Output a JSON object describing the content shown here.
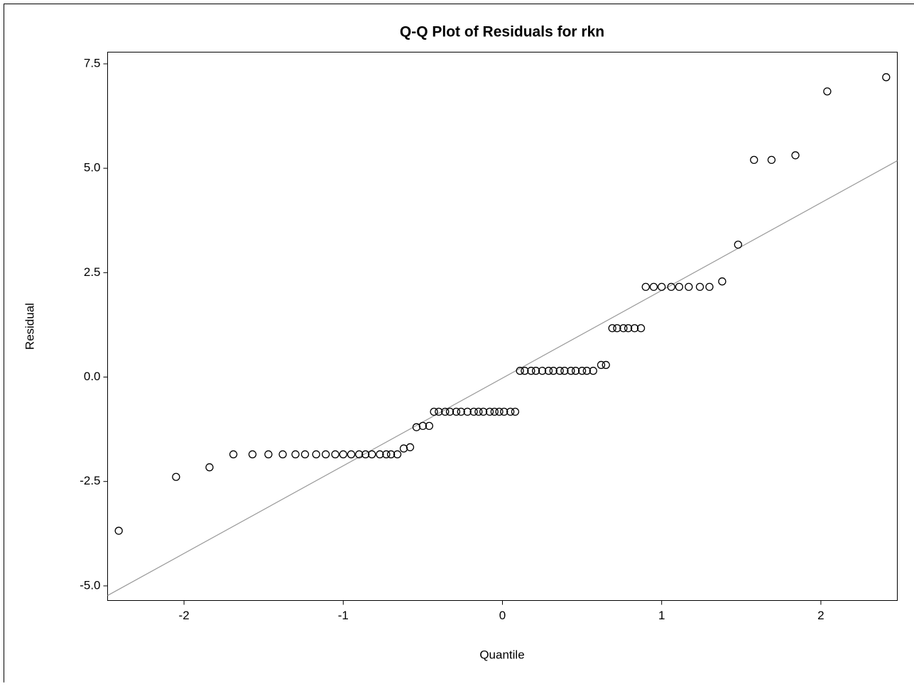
{
  "chart_data": {
    "type": "scatter",
    "title": "Q-Q Plot of Residuals for rkn",
    "x_label": "Quantile",
    "y_label": "Residual",
    "xlim": [
      -2.48,
      2.48
    ],
    "ylim": [
      -5.35,
      7.78
    ],
    "xticks": [
      -2,
      -1,
      0,
      1,
      2
    ],
    "yticks": [
      7.5,
      {
        "value": 5,
        "label": "5.0"
      },
      2.5,
      {
        "value": 0,
        "label": "0.0"
      },
      -2.5,
      {
        "value": -5,
        "label": "-5.0"
      }
    ],
    "series": [
      {
        "color": "#000000",
        "x": [
          -2.41,
          -2.05,
          -1.84,
          -1.69,
          -1.57,
          -1.47,
          -1.38,
          -1.3,
          -1.24,
          -1.17,
          -1.11,
          -1.05,
          -1.0,
          -0.95,
          -0.9,
          -0.86,
          -0.82,
          -0.77,
          -0.73,
          -0.7,
          -0.66,
          -0.62,
          -0.58,
          -0.54,
          -0.5,
          -0.46,
          -0.43,
          -0.4,
          -0.36,
          -0.33,
          -0.29,
          -0.26,
          -0.22,
          -0.18,
          -0.15,
          -0.12,
          -0.08,
          -0.05,
          -0.02,
          0.01,
          0.05,
          0.08,
          0.11,
          0.14,
          0.18,
          0.21,
          0.25,
          0.29,
          0.32,
          0.36,
          0.39,
          0.43,
          0.46,
          0.5,
          0.53,
          0.57,
          0.62,
          0.65,
          0.69,
          0.72,
          0.76,
          0.79,
          0.83,
          0.87,
          0.9,
          0.95,
          1.0,
          1.06,
          1.11,
          1.17,
          1.24,
          1.3,
          1.38,
          1.48,
          1.58,
          1.69,
          1.84,
          2.04,
          2.41
        ],
        "values": [
          -3.68,
          -2.39,
          -2.16,
          -1.85,
          -1.85,
          -1.85,
          -1.85,
          -1.85,
          -1.85,
          -1.85,
          -1.85,
          -1.85,
          -1.85,
          -1.85,
          -1.85,
          -1.85,
          -1.85,
          -1.85,
          -1.85,
          -1.85,
          -1.85,
          -1.71,
          -1.68,
          -1.2,
          -1.17,
          -1.17,
          -0.83,
          -0.83,
          -0.83,
          -0.83,
          -0.83,
          -0.83,
          -0.83,
          -0.83,
          -0.83,
          -0.83,
          -0.83,
          -0.83,
          -0.83,
          -0.83,
          -0.83,
          -0.83,
          0.15,
          0.15,
          0.15,
          0.15,
          0.15,
          0.15,
          0.15,
          0.15,
          0.15,
          0.15,
          0.15,
          0.15,
          0.15,
          0.15,
          0.29,
          0.29,
          1.17,
          1.17,
          1.17,
          1.17,
          1.17,
          1.17,
          2.16,
          2.16,
          2.16,
          2.16,
          2.16,
          2.16,
          2.16,
          2.16,
          2.29,
          3.17,
          5.2,
          5.2,
          5.31,
          6.84,
          7.18
        ]
      }
    ],
    "reference_line": {
      "x": [
        -2.48,
        2.48
      ],
      "y": [
        -5.23,
        5.18
      ],
      "color": "#999999"
    }
  }
}
